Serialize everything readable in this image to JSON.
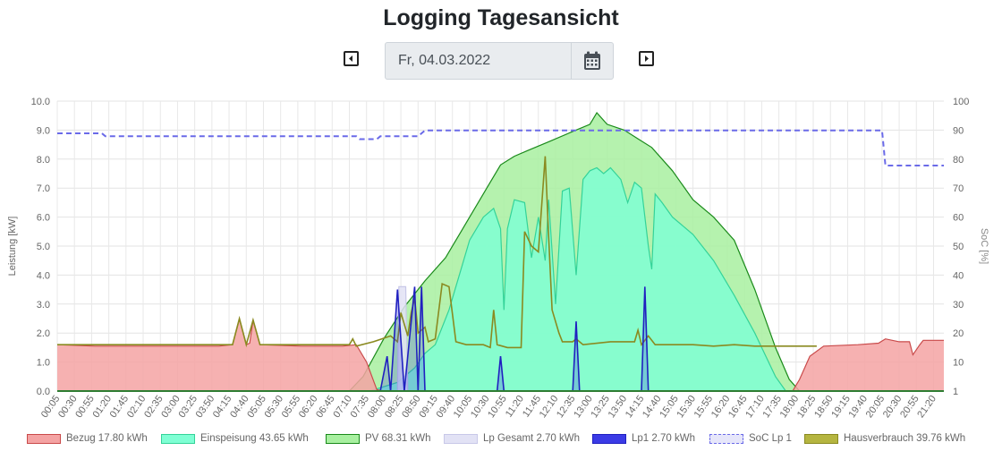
{
  "page": {
    "title": "Logging Tagesansicht",
    "date_value": "Fr, 04.03.2022",
    "prev_icon": "caret-left-icon",
    "next_icon": "caret-right-icon",
    "calendar_icon": "calendar-icon"
  },
  "chart_data": {
    "type": "area",
    "title": "",
    "xlabel": "",
    "ylabel": "Leistung [kW]",
    "y2label": "SoC [%]",
    "ylim": [
      0,
      10
    ],
    "y2lim": [
      1,
      100
    ],
    "y_ticks": [
      "0.0",
      "1.0",
      "2.0",
      "3.0",
      "4.0",
      "5.0",
      "6.0",
      "7.0",
      "8.0",
      "9.0",
      "10.0"
    ],
    "y2_ticks": [
      "1",
      "10",
      "20",
      "30",
      "40",
      "50",
      "60",
      "70",
      "80",
      "90",
      "100"
    ],
    "x_range": [
      "00:05",
      "21:35"
    ],
    "x_tick_labels": [
      "00:05",
      "00:30",
      "00:55",
      "01:20",
      "01:45",
      "02:10",
      "02:35",
      "03:00",
      "03:25",
      "03:50",
      "04:15",
      "04:40",
      "05:05",
      "05:30",
      "05:55",
      "06:20",
      "06:45",
      "07:10",
      "07:35",
      "08:00",
      "08:25",
      "08:50",
      "09:15",
      "09:40",
      "10:05",
      "10:30",
      "10:55",
      "11:20",
      "11:45",
      "12:10",
      "12:35",
      "13:00",
      "13:25",
      "13:50",
      "14:15",
      "14:40",
      "15:05",
      "15:30",
      "15:55",
      "16:20",
      "16:45",
      "17:10",
      "17:35",
      "18:00",
      "18:25",
      "18:50",
      "19:15",
      "19:40",
      "20:05",
      "20:30",
      "20:55",
      "21:20"
    ],
    "grid": true,
    "legend_position": "bottom",
    "series": [
      {
        "name": "Bezug 17.80 kWh",
        "color": "#f4a3a3",
        "stroke": "#c94a4a",
        "style": "area",
        "points": [
          [
            "00:05",
            1.6
          ],
          [
            "01:00",
            1.55
          ],
          [
            "02:00",
            1.55
          ],
          [
            "03:00",
            1.55
          ],
          [
            "04:00",
            1.55
          ],
          [
            "04:20",
            1.6
          ],
          [
            "04:30",
            2.5
          ],
          [
            "04:40",
            1.6
          ],
          [
            "04:45",
            1.65
          ],
          [
            "04:50",
            2.45
          ],
          [
            "05:00",
            1.6
          ],
          [
            "06:00",
            1.55
          ],
          [
            "07:00",
            1.55
          ],
          [
            "07:20",
            1.6
          ],
          [
            "07:35",
            1.0
          ],
          [
            "07:50",
            0.05
          ],
          [
            "08:00",
            0.0
          ],
          [
            "17:55",
            0.0
          ],
          [
            "18:05",
            0.4
          ],
          [
            "18:20",
            1.2
          ],
          [
            "18:40",
            1.55
          ],
          [
            "19:30",
            1.6
          ],
          [
            "20:00",
            1.65
          ],
          [
            "20:10",
            1.8
          ],
          [
            "20:30",
            1.7
          ],
          [
            "20:45",
            1.7
          ],
          [
            "20:50",
            1.25
          ],
          [
            "21:00",
            1.6
          ],
          [
            "21:05",
            1.75
          ],
          [
            "21:35",
            1.75
          ]
        ]
      },
      {
        "name": "Einspeisung 43.65 kWh",
        "color": "#7fffd4",
        "stroke": "#34d399",
        "style": "area",
        "points": [
          [
            "07:40",
            0.0
          ],
          [
            "08:20",
            0.3
          ],
          [
            "08:45",
            0.8
          ],
          [
            "09:00",
            1.3
          ],
          [
            "09:15",
            1.6
          ],
          [
            "09:35",
            2.8
          ],
          [
            "09:50",
            4.0
          ],
          [
            "10:05",
            5.2
          ],
          [
            "10:25",
            6.0
          ],
          [
            "10:40",
            6.3
          ],
          [
            "10:50",
            5.6
          ],
          [
            "10:55",
            2.8
          ],
          [
            "11:00",
            5.6
          ],
          [
            "11:10",
            6.6
          ],
          [
            "11:25",
            6.5
          ],
          [
            "11:35",
            4.6
          ],
          [
            "11:45",
            6.0
          ],
          [
            "11:55",
            4.5
          ],
          [
            "12:00",
            6.6
          ],
          [
            "12:10",
            3.0
          ],
          [
            "12:20",
            6.9
          ],
          [
            "12:30",
            7.0
          ],
          [
            "12:40",
            4.0
          ],
          [
            "12:50",
            7.3
          ],
          [
            "13:00",
            7.6
          ],
          [
            "13:10",
            7.7
          ],
          [
            "13:20",
            7.5
          ],
          [
            "13:30",
            7.7
          ],
          [
            "13:45",
            7.3
          ],
          [
            "13:55",
            6.5
          ],
          [
            "14:05",
            7.2
          ],
          [
            "14:15",
            7.0
          ],
          [
            "14:25",
            5.0
          ],
          [
            "14:30",
            4.2
          ],
          [
            "14:35",
            6.8
          ],
          [
            "14:45",
            6.5
          ],
          [
            "15:00",
            6.0
          ],
          [
            "15:30",
            5.4
          ],
          [
            "16:00",
            4.5
          ],
          [
            "16:30",
            3.3
          ],
          [
            "17:00",
            2.0
          ],
          [
            "17:30",
            0.5
          ],
          [
            "17:45",
            0.0
          ]
        ]
      },
      {
        "name": "PV 68.31 kWh",
        "color": "#a8f0a0",
        "stroke": "#1a8a1a",
        "style": "area",
        "points": [
          [
            "07:10",
            0.0
          ],
          [
            "07:30",
            0.5
          ],
          [
            "08:00",
            1.8
          ],
          [
            "08:30",
            2.9
          ],
          [
            "09:00",
            3.8
          ],
          [
            "09:30",
            4.6
          ],
          [
            "10:00",
            5.8
          ],
          [
            "10:30",
            7.0
          ],
          [
            "10:50",
            7.8
          ],
          [
            "11:10",
            8.1
          ],
          [
            "11:30",
            8.3
          ],
          [
            "12:00",
            8.6
          ],
          [
            "12:30",
            8.9
          ],
          [
            "13:00",
            9.2
          ],
          [
            "13:10",
            9.6
          ],
          [
            "13:25",
            9.2
          ],
          [
            "13:50",
            9.0
          ],
          [
            "14:10",
            8.7
          ],
          [
            "14:30",
            8.4
          ],
          [
            "15:00",
            7.6
          ],
          [
            "15:30",
            6.6
          ],
          [
            "16:00",
            6.0
          ],
          [
            "16:30",
            5.2
          ],
          [
            "17:00",
            3.5
          ],
          [
            "17:30",
            1.5
          ],
          [
            "17:50",
            0.4
          ],
          [
            "18:05",
            0.0
          ]
        ]
      },
      {
        "name": "Lp Gesamt 2.70 kWh",
        "color": "#e2e2f5",
        "stroke": "#c8c8e8",
        "style": "area",
        "points": [
          [
            "08:20",
            0.0
          ],
          [
            "08:22",
            3.6
          ],
          [
            "08:32",
            3.6
          ],
          [
            "08:35",
            0.0
          ]
        ]
      },
      {
        "name": "Lp1 2.70 kWh",
        "color": "#3b3be6",
        "stroke": "#2020c0",
        "style": "line",
        "points": [
          [
            "07:55",
            0.0
          ],
          [
            "08:05",
            1.2
          ],
          [
            "08:10",
            0.0
          ],
          [
            "08:20",
            3.5
          ],
          [
            "08:30",
            0.0
          ],
          [
            "08:45",
            3.6
          ],
          [
            "08:50",
            0.0
          ],
          [
            "08:55",
            3.6
          ],
          [
            "09:00",
            0.0
          ],
          [
            "10:45",
            0.0
          ],
          [
            "10:50",
            1.2
          ],
          [
            "10:55",
            0.0
          ],
          [
            "12:35",
            0.0
          ],
          [
            "12:40",
            2.4
          ],
          [
            "12:45",
            0.0
          ],
          [
            "14:15",
            0.0
          ],
          [
            "14:20",
            3.6
          ],
          [
            "14:25",
            0.0
          ]
        ]
      },
      {
        "name": "SoC Lp 1",
        "color": "#e6e6fa",
        "stroke": "#6a6ae8",
        "style": "dashed",
        "axis": "right",
        "points": [
          [
            "00:05",
            89
          ],
          [
            "01:10",
            89
          ],
          [
            "01:15",
            88
          ],
          [
            "07:20",
            88
          ],
          [
            "07:25",
            87
          ],
          [
            "07:50",
            87
          ],
          [
            "07:55",
            88
          ],
          [
            "08:50",
            88
          ],
          [
            "09:00",
            90
          ],
          [
            "20:05",
            90
          ],
          [
            "20:10",
            78
          ],
          [
            "21:35",
            78
          ]
        ]
      },
      {
        "name": "Hausverbrauch 39.76 kWh",
        "color": "#b5b540",
        "stroke": "#8a8a20",
        "style": "line",
        "points": [
          [
            "00:05",
            1.6
          ],
          [
            "04:20",
            1.6
          ],
          [
            "04:30",
            2.5
          ],
          [
            "04:40",
            1.6
          ],
          [
            "04:50",
            2.45
          ],
          [
            "05:00",
            1.6
          ],
          [
            "07:10",
            1.6
          ],
          [
            "07:15",
            1.8
          ],
          [
            "07:20",
            1.55
          ],
          [
            "07:45",
            1.7
          ],
          [
            "08:10",
            1.9
          ],
          [
            "08:20",
            1.7
          ],
          [
            "08:25",
            2.7
          ],
          [
            "08:35",
            1.9
          ],
          [
            "08:40",
            2.7
          ],
          [
            "08:45",
            3.2
          ],
          [
            "08:50",
            2.0
          ],
          [
            "09:00",
            2.2
          ],
          [
            "09:05",
            1.7
          ],
          [
            "09:15",
            1.8
          ],
          [
            "09:25",
            3.7
          ],
          [
            "09:35",
            3.6
          ],
          [
            "09:45",
            1.7
          ],
          [
            "10:00",
            1.6
          ],
          [
            "10:25",
            1.6
          ],
          [
            "10:35",
            1.5
          ],
          [
            "10:40",
            2.8
          ],
          [
            "10:45",
            1.6
          ],
          [
            "11:00",
            1.5
          ],
          [
            "11:20",
            1.5
          ],
          [
            "11:25",
            5.5
          ],
          [
            "11:35",
            5.0
          ],
          [
            "11:45",
            4.8
          ],
          [
            "11:55",
            8.1
          ],
          [
            "12:00",
            5.3
          ],
          [
            "12:05",
            2.8
          ],
          [
            "12:15",
            2.0
          ],
          [
            "12:20",
            1.7
          ],
          [
            "12:35",
            1.7
          ],
          [
            "12:40",
            1.8
          ],
          [
            "12:50",
            1.6
          ],
          [
            "13:30",
            1.7
          ],
          [
            "14:05",
            1.7
          ],
          [
            "14:10",
            2.1
          ],
          [
            "14:15",
            1.6
          ],
          [
            "14:25",
            1.9
          ],
          [
            "14:35",
            1.6
          ],
          [
            "15:00",
            1.6
          ],
          [
            "15:30",
            1.6
          ],
          [
            "16:00",
            1.55
          ],
          [
            "16:30",
            1.6
          ],
          [
            "17:00",
            1.55
          ],
          [
            "17:30",
            1.55
          ],
          [
            "18:00",
            1.55
          ],
          [
            "18:30",
            1.55
          ]
        ]
      }
    ]
  }
}
